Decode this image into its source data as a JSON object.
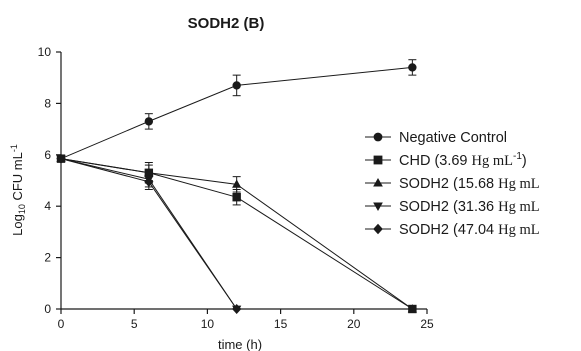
{
  "chart_data": {
    "type": "line",
    "title": "SODH2 (B)",
    "xlabel": "time (h)",
    "ylabel_base": "Log",
    "ylabel_sub": "10",
    "ylabel_unit": " CFU mL",
    "ylabel_sup": "-1",
    "xlim": [
      0,
      25
    ],
    "ylim": [
      0,
      10
    ],
    "xticks": [
      0,
      5,
      10,
      15,
      20,
      25
    ],
    "yticks": [
      0,
      2,
      4,
      6,
      8,
      10
    ],
    "grid": false,
    "legend_position": "right",
    "series": [
      {
        "name": "Negative Control",
        "name_main": "Negative Control",
        "name_conc": "",
        "marker": "circle",
        "x": [
          0,
          6,
          12,
          24
        ],
        "y": [
          5.85,
          7.3,
          8.7,
          9.4
        ],
        "err": [
          0.1,
          0.3,
          0.4,
          0.3
        ]
      },
      {
        "name": "CHD (3.69 Hg mL-1)",
        "name_main": "CHD (3.69 ",
        "name_conc": "Hg mL",
        "name_sup": "-1",
        "name_close": ")",
        "marker": "square",
        "x": [
          0,
          6,
          12,
          24
        ],
        "y": [
          5.85,
          5.3,
          4.35,
          0.0
        ],
        "err": [
          0.1,
          0.4,
          0.3,
          0.0
        ]
      },
      {
        "name": "SODH2 (15.68 Hg mL",
        "name_main": "SODH2 (15.68 ",
        "name_conc": "Hg mL",
        "name_sup": "",
        "name_close": "",
        "marker": "triangle-up",
        "x": [
          0,
          6,
          12,
          24
        ],
        "y": [
          5.85,
          5.3,
          4.85,
          0.0
        ],
        "err": [
          0.1,
          0.3,
          0.3,
          0.0
        ]
      },
      {
        "name": "SODH2 (31.36 Hg mL",
        "name_main": "SODH2 (31.36 ",
        "name_conc": "Hg mL",
        "name_sup": "",
        "name_close": "",
        "marker": "triangle-down",
        "x": [
          0,
          6,
          12
        ],
        "y": [
          5.85,
          5.05,
          0.0
        ],
        "err": [
          0.1,
          0.3,
          0.0
        ]
      },
      {
        "name": "SODH2 (47.04 Hg mL",
        "name_main": "SODH2 (47.04 ",
        "name_conc": "Hg mL",
        "name_sup": "",
        "name_close": "",
        "marker": "diamond",
        "x": [
          0,
          6,
          12
        ],
        "y": [
          5.85,
          4.95,
          0.0
        ],
        "err": [
          0.1,
          0.3,
          0.0
        ]
      }
    ]
  }
}
